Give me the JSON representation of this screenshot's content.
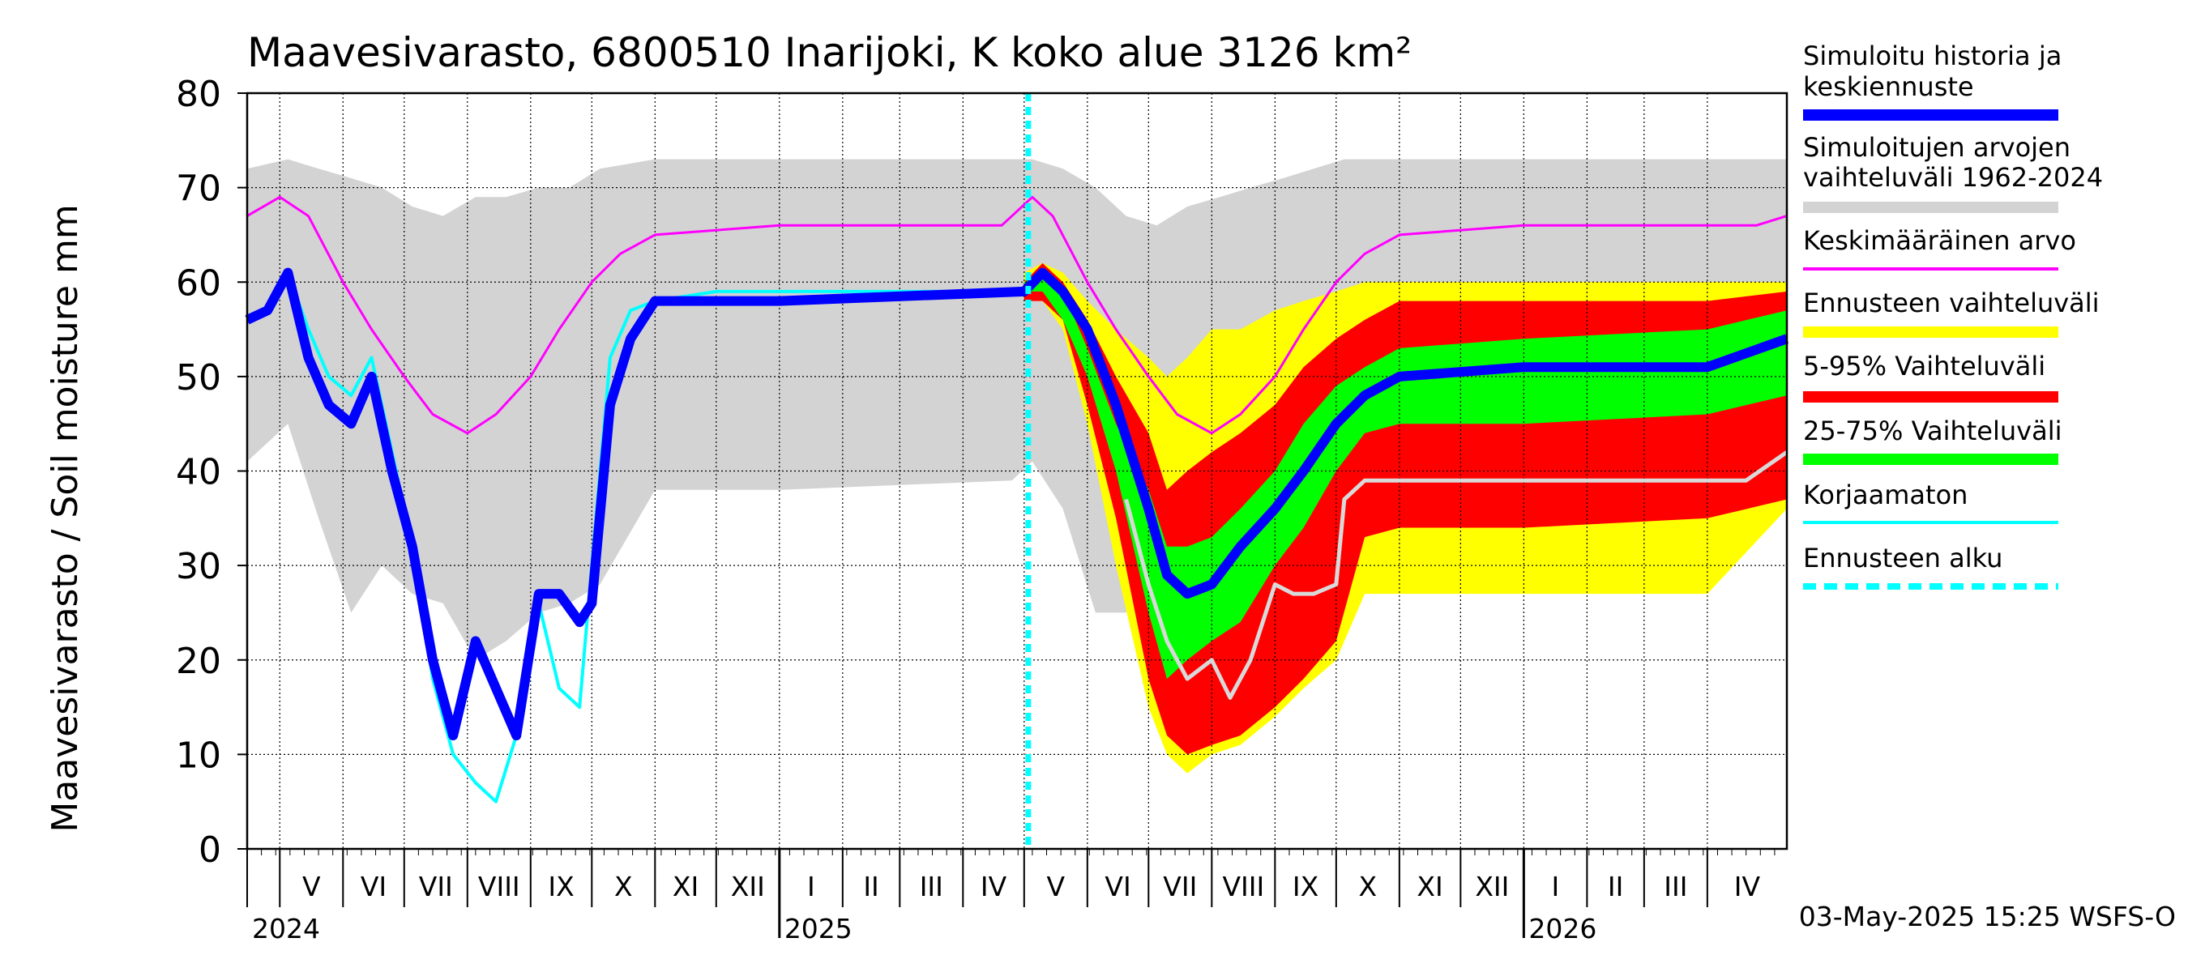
{
  "chart_data": {
    "type": "area",
    "title": "Maavesivarasto, 6800510 Inarijoki, K koko alue 3126 km²",
    "ylabel": "Maavesivarasto / Soil moisture   mm",
    "ylim": [
      0,
      80
    ],
    "yticks": [
      0,
      10,
      20,
      30,
      40,
      50,
      60,
      70,
      80
    ],
    "grid": true,
    "legend_position": "right",
    "x_range": [
      "2024-04-15",
      "2026-05-10"
    ],
    "forecast_start": "2025-05-03",
    "months": [
      {
        "label": "V",
        "start": "2024-05-01"
      },
      {
        "label": "VI",
        "start": "2024-06-01"
      },
      {
        "label": "VII",
        "start": "2024-07-01"
      },
      {
        "label": "VIII",
        "start": "2024-08-01"
      },
      {
        "label": "IX",
        "start": "2024-09-01"
      },
      {
        "label": "X",
        "start": "2024-10-01"
      },
      {
        "label": "XI",
        "start": "2024-11-01"
      },
      {
        "label": "XII",
        "start": "2024-12-01"
      },
      {
        "label": "I",
        "start": "2025-01-01"
      },
      {
        "label": "II",
        "start": "2025-02-01"
      },
      {
        "label": "III",
        "start": "2025-03-01"
      },
      {
        "label": "IV",
        "start": "2025-04-01"
      },
      {
        "label": "V",
        "start": "2025-05-01"
      },
      {
        "label": "VI",
        "start": "2025-06-01"
      },
      {
        "label": "VII",
        "start": "2025-07-01"
      },
      {
        "label": "VIII",
        "start": "2025-08-01"
      },
      {
        "label": "IX",
        "start": "2025-09-01"
      },
      {
        "label": "X",
        "start": "2025-10-01"
      },
      {
        "label": "XI",
        "start": "2025-11-01"
      },
      {
        "label": "XII",
        "start": "2025-12-01"
      },
      {
        "label": "I",
        "start": "2026-01-01"
      },
      {
        "label": "II",
        "start": "2026-02-01"
      },
      {
        "label": "III",
        "start": "2026-03-01"
      },
      {
        "label": "IV",
        "start": "2026-04-01"
      }
    ],
    "years": [
      {
        "label": "2024",
        "date": "2024-04-15"
      },
      {
        "label": "2025",
        "date": "2025-01-01"
      },
      {
        "label": "2026",
        "date": "2026-01-01"
      }
    ],
    "legend": [
      {
        "label": "Simuloitu historia ja keskiennuste",
        "color": "#0000ff",
        "style": "thick"
      },
      {
        "label": "Simuloitujen arvojen vaihteluväli 1962-2024",
        "color": "#d3d3d3",
        "style": "thick"
      },
      {
        "label": "Keskimääräinen arvo",
        "color": "#ff00ff",
        "style": "thin"
      },
      {
        "label": "Ennusteen vaihteluväli",
        "color": "#ffff00",
        "style": "thick"
      },
      {
        "label": "5-95% Vaihteluväli",
        "color": "#ff0000",
        "style": "thick"
      },
      {
        "label": "25-75% Vaihteluväli",
        "color": "#00ff00",
        "style": "thick"
      },
      {
        "label": "Korjaamaton",
        "color": "#00ffff",
        "style": "thin"
      },
      {
        "label": "Ennusteen alku",
        "color": "#00ffff",
        "style": "dashed"
      }
    ],
    "series": [
      {
        "key": "hist_range",
        "x": [
          "2024-04-15",
          "2024-05-05",
          "2024-05-20",
          "2024-06-05",
          "2024-06-20",
          "2024-07-05",
          "2024-07-20",
          "2024-08-05",
          "2024-08-20",
          "2024-09-05",
          "2024-09-20",
          "2024-10-05",
          "2024-11-01",
          "2025-01-01",
          "2025-04-25",
          "2025-05-05",
          "2025-05-20",
          "2025-06-05",
          "2025-06-20",
          "2025-07-05",
          "2025-07-20",
          "2025-08-05",
          "2025-08-20",
          "2025-09-05",
          "2025-09-20",
          "2025-10-05",
          "2025-11-01",
          "2026-01-01",
          "2026-05-10"
        ],
        "upper": [
          72,
          73,
          72,
          71,
          70,
          68,
          67,
          69,
          69,
          70,
          70,
          72,
          73,
          73,
          73,
          73,
          72,
          70,
          67,
          66,
          68,
          69,
          70,
          71,
          72,
          73,
          73,
          73,
          73
        ],
        "lower": [
          41,
          45,
          35,
          25,
          30,
          27,
          26,
          20,
          22,
          25,
          26,
          28,
          38,
          38,
          39,
          41,
          36,
          25,
          25,
          30,
          28,
          26,
          27,
          27,
          27,
          28,
          38,
          38,
          38
        ]
      },
      {
        "key": "mean",
        "x": [
          "2024-04-15",
          "2024-05-01",
          "2024-05-15",
          "2024-06-01",
          "2024-06-15",
          "2024-07-01",
          "2024-07-15",
          "2024-08-01",
          "2024-08-15",
          "2024-09-01",
          "2024-09-15",
          "2024-10-01",
          "2024-10-15",
          "2024-11-01",
          "2025-01-01",
          "2025-04-20",
          "2025-05-05",
          "2025-05-15",
          "2025-06-01",
          "2025-06-15",
          "2025-07-01",
          "2025-07-15",
          "2025-08-01",
          "2025-08-15",
          "2025-09-01",
          "2025-09-15",
          "2025-10-01",
          "2025-10-15",
          "2025-11-01",
          "2026-01-01",
          "2026-04-25",
          "2026-05-10"
        ],
        "values": [
          67,
          69,
          67,
          60,
          55,
          50,
          46,
          44,
          46,
          50,
          55,
          60,
          63,
          65,
          66,
          66,
          69,
          67,
          60,
          55,
          50,
          46,
          44,
          46,
          50,
          55,
          60,
          63,
          65,
          66,
          66,
          67
        ]
      },
      {
        "key": "forecast_range",
        "x": [
          "2025-05-01",
          "2025-05-10",
          "2025-05-20",
          "2025-06-01",
          "2025-06-15",
          "2025-07-01",
          "2025-07-10",
          "2025-07-20",
          "2025-08-01",
          "2025-08-15",
          "2025-09-01",
          "2025-09-15",
          "2025-10-01",
          "2025-10-15",
          "2025-11-01",
          "2026-01-01",
          "2026-04-01",
          "2026-05-10"
        ],
        "upper": [
          61,
          62,
          61,
          58,
          55,
          52,
          50,
          52,
          55,
          55,
          57,
          58,
          59,
          60,
          60,
          60,
          60,
          60
        ],
        "lower": [
          58,
          58,
          55,
          45,
          30,
          15,
          10,
          8,
          10,
          11,
          14,
          17,
          20,
          27,
          27,
          27,
          27,
          36
        ]
      },
      {
        "key": "p5_95",
        "x": [
          "2025-05-01",
          "2025-05-10",
          "2025-05-20",
          "2025-06-01",
          "2025-06-15",
          "2025-07-01",
          "2025-07-10",
          "2025-07-20",
          "2025-08-01",
          "2025-08-15",
          "2025-09-01",
          "2025-09-15",
          "2025-10-01",
          "2025-10-15",
          "2025-11-01",
          "2026-01-01",
          "2026-04-01",
          "2026-05-10"
        ],
        "upper": [
          60,
          62,
          60,
          56,
          50,
          44,
          38,
          40,
          42,
          44,
          47,
          51,
          54,
          56,
          58,
          58,
          58,
          59
        ],
        "lower": [
          58,
          58,
          56,
          47,
          35,
          18,
          12,
          10,
          11,
          12,
          15,
          18,
          22,
          33,
          34,
          34,
          35,
          37
        ]
      },
      {
        "key": "p25_75",
        "x": [
          "2025-05-01",
          "2025-05-10",
          "2025-05-20",
          "2025-06-01",
          "2025-06-15",
          "2025-07-01",
          "2025-07-10",
          "2025-07-20",
          "2025-08-01",
          "2025-08-15",
          "2025-09-01",
          "2025-09-15",
          "2025-10-01",
          "2025-10-15",
          "2025-11-01",
          "2026-01-01",
          "2026-04-01",
          "2026-05-10"
        ],
        "upper": [
          60,
          61,
          59,
          53,
          45,
          38,
          32,
          32,
          33,
          36,
          40,
          45,
          49,
          51,
          53,
          54,
          55,
          57
        ],
        "lower": [
          59,
          59,
          56,
          50,
          40,
          25,
          18,
          20,
          22,
          24,
          30,
          34,
          40,
          44,
          45,
          45,
          46,
          48
        ]
      },
      {
        "key": "uncorrected",
        "x": [
          "2024-04-15",
          "2024-04-25",
          "2024-05-05",
          "2024-05-15",
          "2024-05-25",
          "2024-06-05",
          "2024-06-15",
          "2024-06-25",
          "2024-07-05",
          "2024-07-15",
          "2024-07-25",
          "2024-08-05",
          "2024-08-15",
          "2024-08-25",
          "2024-09-05",
          "2024-09-15",
          "2024-09-25",
          "2024-10-01",
          "2024-10-10",
          "2024-10-20",
          "2024-11-01",
          "2024-12-01",
          "2025-01-01",
          "2025-04-30"
        ],
        "values": [
          56,
          57,
          61,
          55,
          50,
          48,
          52,
          42,
          32,
          18,
          10,
          7,
          5,
          12,
          26,
          17,
          15,
          30,
          52,
          57,
          58,
          59,
          59,
          59
        ]
      },
      {
        "key": "uncorrected_forecast",
        "x": [
          "2025-06-20",
          "2025-07-01",
          "2025-07-10",
          "2025-07-20",
          "2025-08-01",
          "2025-08-10",
          "2025-08-20",
          "2025-09-01",
          "2025-09-10",
          "2025-09-20",
          "2025-10-01",
          "2025-10-05",
          "2025-10-15",
          "2025-11-01",
          "2026-01-01",
          "2026-04-20",
          "2026-05-10"
        ],
        "values": [
          37,
          28,
          22,
          18,
          20,
          16,
          20,
          28,
          27,
          27,
          28,
          37,
          39,
          39,
          39,
          39,
          42
        ]
      },
      {
        "key": "simulated",
        "x": [
          "2024-04-15",
          "2024-04-25",
          "2024-05-05",
          "2024-05-15",
          "2024-05-25",
          "2024-06-05",
          "2024-06-15",
          "2024-06-25",
          "2024-07-05",
          "2024-07-15",
          "2024-07-25",
          "2024-08-05",
          "2024-08-15",
          "2024-08-25",
          "2024-09-05",
          "2024-09-15",
          "2024-09-25",
          "2024-10-01",
          "2024-10-10",
          "2024-10-20",
          "2024-11-01",
          "2024-12-01",
          "2025-01-01",
          "2025-05-01",
          "2025-05-10",
          "2025-05-20",
          "2025-06-01",
          "2025-06-15",
          "2025-07-01",
          "2025-07-10",
          "2025-07-20",
          "2025-08-01",
          "2025-08-15",
          "2025-09-01",
          "2025-09-15",
          "2025-10-01",
          "2025-10-15",
          "2025-11-01",
          "2026-01-01",
          "2026-04-01",
          "2026-05-10"
        ],
        "values": [
          56,
          57,
          61,
          52,
          47,
          45,
          50,
          40,
          32,
          20,
          12,
          22,
          17,
          12,
          27,
          27,
          24,
          26,
          47,
          54,
          58,
          58,
          58,
          59,
          61,
          59,
          55,
          47,
          36,
          29,
          27,
          28,
          32,
          36,
          40,
          45,
          48,
          50,
          51,
          51,
          54
        ]
      }
    ]
  },
  "footer": {
    "timestamp": "03-May-2025 15:25 WSFS-O"
  }
}
